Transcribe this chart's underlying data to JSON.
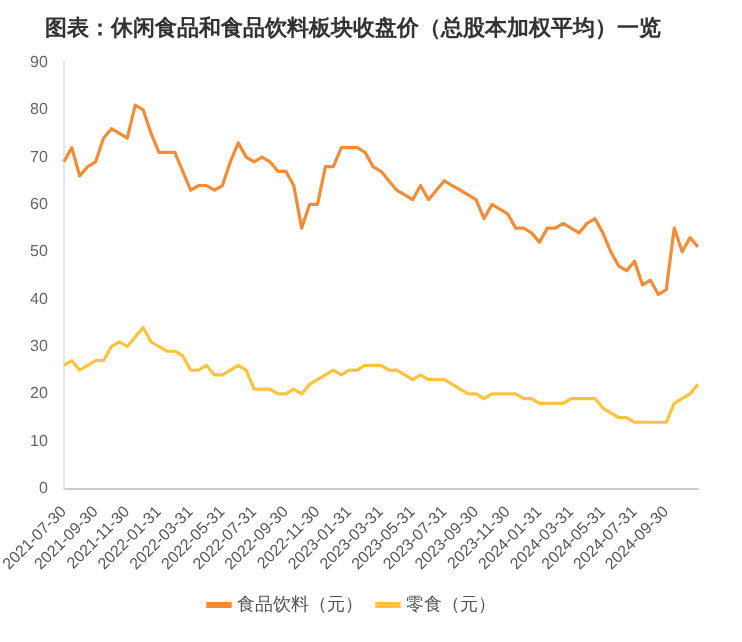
{
  "chart_data": {
    "type": "line",
    "title": "图表：休闲食品和食品饮料板块收盘价（总股本加权平均）一览",
    "categories": [
      "2021-07-30",
      null,
      null,
      null,
      "2021-09-30",
      null,
      null,
      null,
      "2021-11-30",
      null,
      null,
      null,
      "2022-01-31",
      null,
      null,
      null,
      "2022-03-31",
      null,
      null,
      null,
      "2022-05-31",
      null,
      null,
      null,
      "2022-07-31",
      null,
      null,
      null,
      "2022-09-30",
      null,
      null,
      null,
      "2022-11-30",
      null,
      null,
      null,
      "2023-01-31",
      null,
      null,
      null,
      "2023-03-31",
      null,
      null,
      null,
      "2023-05-31",
      null,
      null,
      null,
      "2023-07-31",
      null,
      null,
      null,
      "2023-09-30",
      null,
      null,
      null,
      "2023-11-30",
      null,
      null,
      null,
      "2024-01-31",
      null,
      null,
      null,
      "2024-03-31",
      null,
      null,
      null,
      "2024-05-31",
      null,
      null,
      null,
      "2024-07-31",
      null,
      null,
      null,
      "2024-09-30",
      null,
      null,
      null,
      null
    ],
    "series": [
      {
        "name": "食品饮料（元）",
        "color": "#f28c38",
        "values": [
          69,
          72,
          66,
          68,
          69,
          74,
          76,
          75,
          74,
          81,
          80,
          75,
          71,
          71,
          71,
          67,
          63,
          64,
          64,
          63,
          64,
          69,
          73,
          70,
          69,
          70,
          69,
          67,
          67,
          64,
          55,
          60,
          60,
          68,
          68,
          72,
          72,
          72,
          71,
          68,
          67,
          65,
          63,
          62,
          61,
          64,
          61,
          63,
          65,
          64,
          63,
          62,
          61,
          57,
          60,
          59,
          58,
          55,
          55,
          54,
          52,
          55,
          55,
          56,
          55,
          54,
          56,
          57,
          54,
          50,
          47,
          46,
          48,
          43,
          44,
          41,
          42,
          55,
          50,
          53,
          51
        ]
      },
      {
        "name": "零食（元）",
        "color": "#fcc340",
        "values": [
          26,
          27,
          25,
          26,
          27,
          27,
          30,
          31,
          30,
          32,
          34,
          31,
          30,
          29,
          29,
          28,
          25,
          25,
          26,
          24,
          24,
          25,
          26,
          25,
          21,
          21,
          21,
          20,
          20,
          21,
          20,
          22,
          23,
          24,
          25,
          24,
          25,
          25,
          26,
          26,
          26,
          25,
          25,
          24,
          23,
          24,
          23,
          23,
          23,
          22,
          21,
          20,
          20,
          19,
          20,
          20,
          20,
          20,
          19,
          19,
          18,
          18,
          18,
          18,
          19,
          19,
          19,
          19,
          17,
          16,
          15,
          15,
          14,
          14,
          14,
          14,
          14,
          18,
          19,
          20,
          22
        ]
      }
    ],
    "ylim": [
      0,
      90
    ],
    "yticks": [
      0,
      10,
      20,
      30,
      40,
      50,
      60,
      70,
      80,
      90
    ],
    "grid": false,
    "legend": "bottom",
    "marker": "none",
    "line_style": "solid"
  }
}
